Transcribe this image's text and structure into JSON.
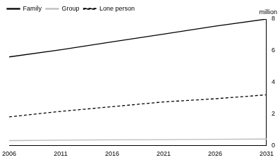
{
  "chart_data": {
    "type": "line",
    "y_label": "million",
    "x": [
      2006,
      2011,
      2016,
      2021,
      2026,
      2031
    ],
    "series": [
      {
        "name": "Family",
        "color": "#000000",
        "line_style": "solid",
        "values": [
          5.6,
          6.05,
          6.55,
          7.05,
          7.55,
          8.0
        ]
      },
      {
        "name": "Group",
        "color": "#bbbbbb",
        "line_style": "solid",
        "values": [
          0.3,
          0.33,
          0.35,
          0.36,
          0.38,
          0.4
        ]
      },
      {
        "name": "Lone person",
        "color": "#000000",
        "line_style": "dashed",
        "values": [
          1.8,
          2.15,
          2.45,
          2.75,
          2.95,
          3.2
        ]
      }
    ],
    "xlim": [
      2006,
      2031
    ],
    "xticks": [
      2006,
      2011,
      2016,
      2021,
      2026,
      2031
    ],
    "ylim": [
      0,
      8
    ],
    "yticks": [
      0,
      2,
      4,
      6,
      8
    ],
    "grid": false,
    "legend": "upper left"
  }
}
